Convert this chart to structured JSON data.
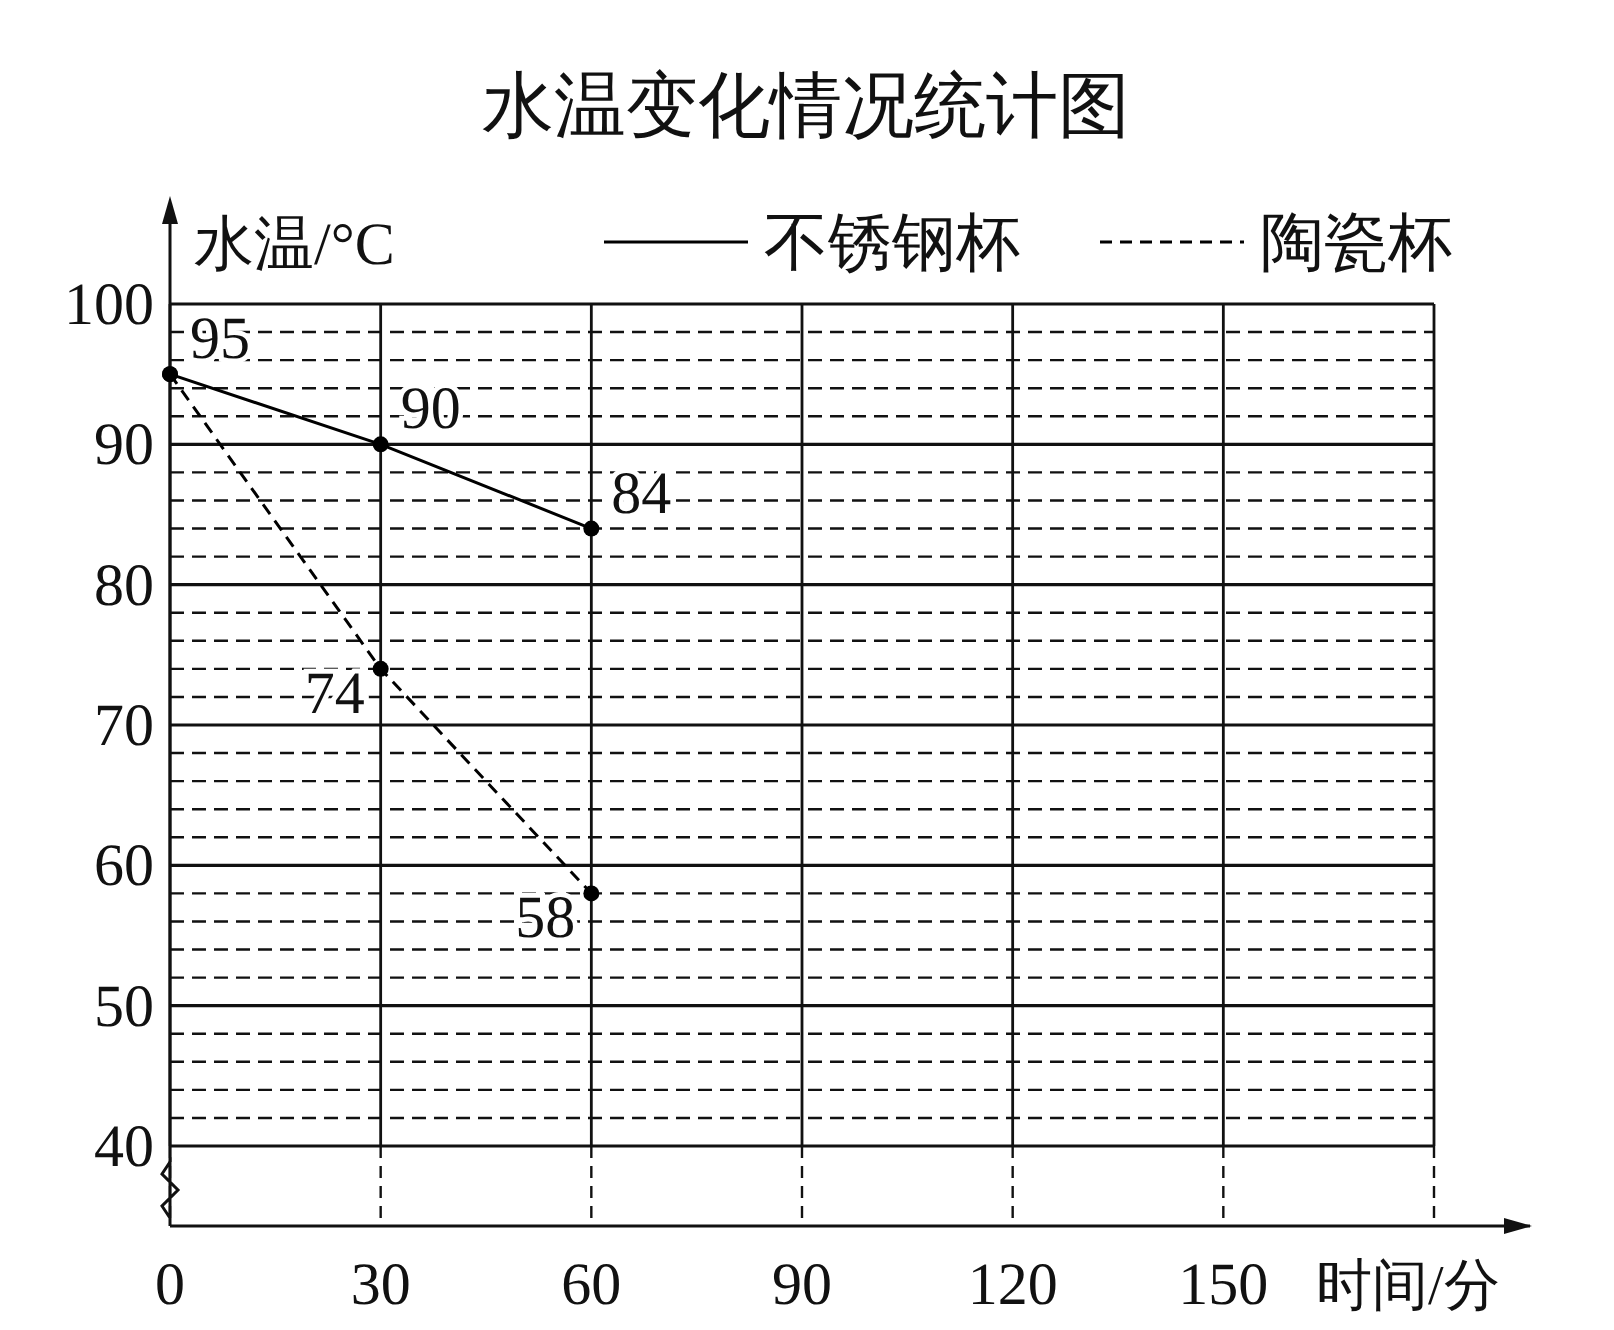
{
  "chart_data": {
    "type": "line",
    "title": "水温变化情况统计图",
    "ylabel": "水温/°C",
    "xlabel": "时间/分",
    "x": [
      0,
      30,
      60
    ],
    "xlim": [
      0,
      180
    ],
    "xticks": [
      0,
      30,
      60,
      90,
      120,
      150,
      {
        "value": 180,
        "label": null
      }
    ],
    "ylim": [
      40,
      100
    ],
    "yticks": [
      40,
      50,
      60,
      70,
      80,
      90,
      100
    ],
    "series": [
      {
        "name": "不锈钢杯",
        "color": "#000000",
        "line_style": "solid",
        "values": [
          95,
          90,
          84
        ],
        "value_labels": [
          "95",
          "90",
          "84"
        ]
      },
      {
        "name": "陶瓷杯",
        "color": "#000000",
        "line_style": "dashed",
        "values": [
          95,
          74,
          58
        ],
        "value_labels": [
          null,
          "74",
          "58"
        ]
      }
    ],
    "marker": "circle",
    "grid": true,
    "legend": "top right"
  }
}
